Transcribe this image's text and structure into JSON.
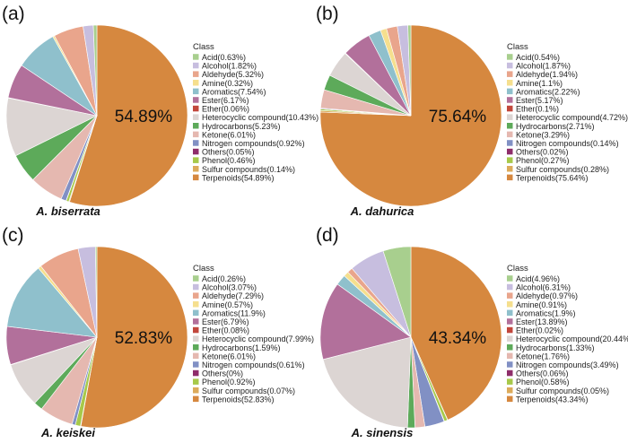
{
  "figure": {
    "colors": {
      "Acid": "#a8cf8e",
      "Alcohol": "#c7bedf",
      "Aldehyde": "#e9a58c",
      "Amine": "#f5df8e",
      "Aromatics": "#8fc0cc",
      "Ester": "#b2709b",
      "Ether": "#c2473c",
      "Heterocyclic compound": "#dcd5d3",
      "Hydrocarbons": "#5daa5a",
      "Ketone": "#e5b8b0",
      "Nitrogen compounds": "#8190c4",
      "Others": "#8e2d6a",
      "Phenol": "#a7c94a",
      "Sulfur compounds": "#dcab5b",
      "Terpenoids": "#d6883f"
    }
  },
  "chart_data": [
    {
      "type": "pie",
      "panel": "(a)",
      "title": "A. biserrata",
      "center_label": "54.89%",
      "legend_title": "Class",
      "categories": [
        "Acid",
        "Alcohol",
        "Aldehyde",
        "Amine",
        "Aromatics",
        "Ester",
        "Ether",
        "Heterocyclic compound",
        "Hydrocarbons",
        "Ketone",
        "Nitrogen compounds",
        "Others",
        "Phenol",
        "Sulfur compounds",
        "Terpenoids"
      ],
      "values": [
        0.63,
        1.82,
        5.32,
        0.32,
        7.54,
        6.17,
        0.06,
        10.43,
        5.23,
        6.01,
        0.92,
        0.05,
        0.46,
        0.14,
        54.89
      ],
      "legend_labels": [
        "Acid(0.63%)",
        "Alcohol(1.82%)",
        "Aldehyde(5.32%)",
        "Amine(0.32%)",
        "Aromatics(7.54%)",
        "Ester(6.17%)",
        "Ether(0.06%)",
        "Heterocyclic compound(10.43%)",
        "Hydrocarbons(5.23%)",
        "Ketone(6.01%)",
        "Nitrogen compounds(0.92%)",
        "Others(0.05%)",
        "Phenol(0.46%)",
        "Sulfur compounds(0.14%)",
        "Terpenoids(54.89%)"
      ]
    },
    {
      "type": "pie",
      "panel": "(b)",
      "title": "A. dahurica",
      "center_label": "75.64%",
      "legend_title": "Class",
      "categories": [
        "Acid",
        "Alcohol",
        "Aldehyde",
        "Amine",
        "Aromatics",
        "Ester",
        "Ether",
        "Heterocyclic compound",
        "Hydrocarbons",
        "Ketone",
        "Nitrogen compounds",
        "Others",
        "Phenol",
        "Sulfur compounds",
        "Terpenoids"
      ],
      "values": [
        0.54,
        1.87,
        1.94,
        1.1,
        2.22,
        5.17,
        0.1,
        4.72,
        2.71,
        3.29,
        0.14,
        0.02,
        0.27,
        0.28,
        75.64
      ],
      "legend_labels": [
        "Acid(0.54%)",
        "Alcohol(1.87%)",
        "Aldehyde(1.94%)",
        "Amine(1.1%)",
        "Aromatics(2.22%)",
        "Ester(5.17%)",
        "Ether(0.1%)",
        "Heterocyclic compound(4.72%)",
        "Hydrocarbons(2.71%)",
        "Ketone(3.29%)",
        "Nitrogen compounds(0.14%)",
        "Others(0.02%)",
        "Phenol(0.27%)",
        "Sulfur compounds(0.28%)",
        "Terpenoids(75.64%)"
      ]
    },
    {
      "type": "pie",
      "panel": "(c)",
      "title": "A. keiskei",
      "center_label": "52.83%",
      "legend_title": "Class",
      "categories": [
        "Acid",
        "Alcohol",
        "Aldehyde",
        "Amine",
        "Aromatics",
        "Ester",
        "Ether",
        "Heterocyclic compound",
        "Hydrocarbons",
        "Ketone",
        "Nitrogen compounds",
        "Others",
        "Phenol",
        "Sulfur compounds",
        "Terpenoids"
      ],
      "values": [
        0.26,
        3.07,
        7.29,
        0.57,
        11.9,
        6.79,
        0.08,
        7.99,
        1.59,
        6.01,
        0.61,
        0,
        0.92,
        0.07,
        52.83
      ],
      "legend_labels": [
        "Acid(0.26%)",
        "Alcohol(3.07%)",
        "Aldehyde(7.29%)",
        "Amine(0.57%)",
        "Aromatics(11.9%)",
        "Ester(6.79%)",
        "Ether(0.08%)",
        "Heterocyclic compound(7.99%)",
        "Hydrocarbons(1.59%)",
        "Ketone(6.01%)",
        "Nitrogen compounds(0.61%)",
        "Others(0%)",
        "Phenol(0.92%)",
        "Sulfur compounds(0.07%)",
        "Terpenoids(52.83%)"
      ]
    },
    {
      "type": "pie",
      "panel": "(d)",
      "title": "A. sinensis",
      "center_label": "43.34%",
      "legend_title": "Class",
      "categories": [
        "Acid",
        "Alcohol",
        "Aldehyde",
        "Amine",
        "Aromatics",
        "Ester",
        "Ether",
        "Heterocyclic compound",
        "Hydrocarbons",
        "Ketone",
        "Nitrogen compounds",
        "Others",
        "Phenol",
        "Sulfur compounds",
        "Terpenoids"
      ],
      "values": [
        4.96,
        6.31,
        0.97,
        0.91,
        1.9,
        13.89,
        0.02,
        20.44,
        1.33,
        1.76,
        3.49,
        0.06,
        0.58,
        0.05,
        43.34
      ],
      "legend_labels": [
        "Acid(4.96%)",
        "Alcohol(6.31%)",
        "Aldehyde(0.97%)",
        "Amine(0.91%)",
        "Aromatics(1.9%)",
        "Ester(13.89%)",
        "Ether(0.02%)",
        "Heterocyclic compound(20.44%)",
        "Hydrocarbons(1.33%)",
        "Ketone(1.76%)",
        "Nitrogen compounds(3.49%)",
        "Others(0.06%)",
        "Phenol(0.58%)",
        "Sulfur compounds(0.05%)",
        "Terpenoids(43.34%)"
      ]
    }
  ]
}
